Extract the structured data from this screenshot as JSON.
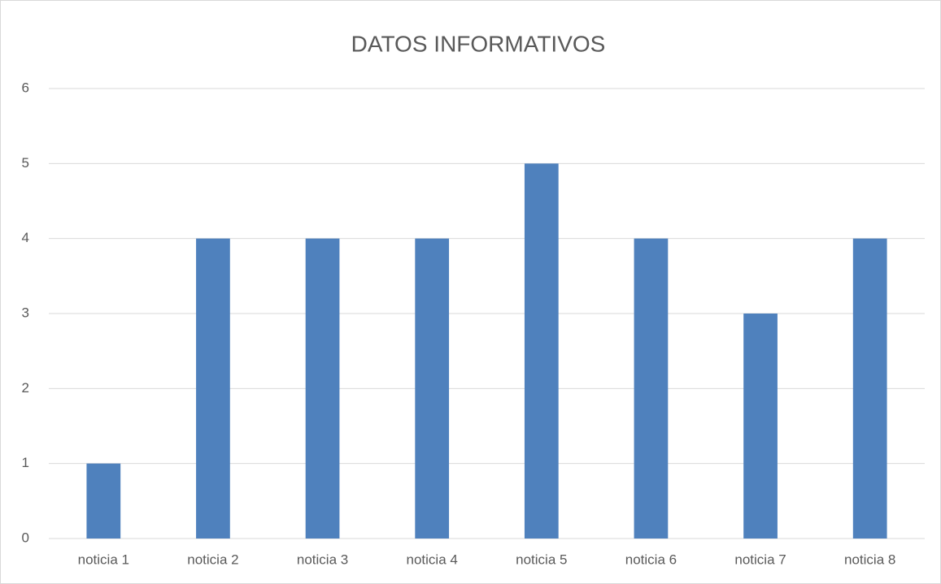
{
  "chart_data": {
    "type": "bar",
    "title": "DATOS INFORMATIVOS",
    "categories": [
      "noticia 1",
      "noticia 2",
      "noticia 3",
      "noticia 4",
      "noticia 5",
      "noticia 6",
      "noticia 7",
      "noticia 8"
    ],
    "values": [
      1,
      4,
      4,
      4,
      5,
      4,
      3,
      4
    ],
    "color": "#4f81bd",
    "ylim": [
      0,
      6
    ],
    "yticks": [
      0,
      1,
      2,
      3,
      4,
      5,
      6
    ],
    "grid": true
  }
}
